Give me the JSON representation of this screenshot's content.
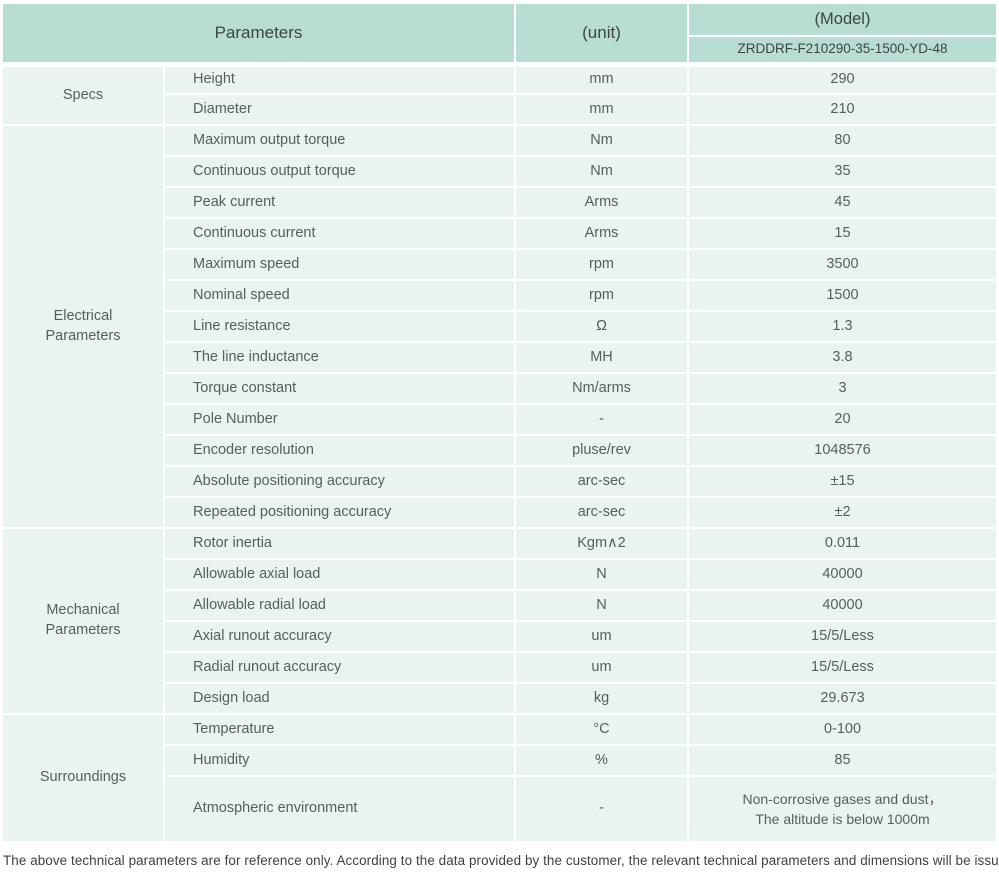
{
  "header": {
    "parameters_label": "Parameters",
    "unit_label": "(unit)",
    "model_label": "(Model)",
    "model_number": "ZRDDRF-F210290-35-1500-YD-48"
  },
  "colors": {
    "header_bg": "#b8ddd3",
    "row_bg": "#e9f4f1",
    "header_text": "#3d4543",
    "body_text": "#565d5a",
    "divider": "#ffffff"
  },
  "sections": [
    {
      "category": "Specs",
      "rows": [
        {
          "param": "Height",
          "unit": "mm",
          "value": "290"
        },
        {
          "param": "Diameter",
          "unit": "mm",
          "value": "210"
        }
      ]
    },
    {
      "category": "Electrical\nParameters",
      "rows": [
        {
          "param": "Maximum output torque",
          "unit": "Nm",
          "value": "80"
        },
        {
          "param": "Continuous output torque",
          "unit": "Nm",
          "value": "35"
        },
        {
          "param": "Peak current",
          "unit": "Arms",
          "value": "45"
        },
        {
          "param": "Continuous current",
          "unit": "Arms",
          "value": "15"
        },
        {
          "param": "Maximum speed",
          "unit": "rpm",
          "value": "3500"
        },
        {
          "param": "Nominal speed",
          "unit": "rpm",
          "value": "1500"
        },
        {
          "param": "Line resistance",
          "unit": "Ω",
          "value": "1.3"
        },
        {
          "param": "The line inductance",
          "unit": "MH",
          "value": "3.8"
        },
        {
          "param": "Torque constant",
          "unit": "Nm/arms",
          "value": "3"
        },
        {
          "param": "Pole Number",
          "unit": "-",
          "value": "20"
        },
        {
          "param": "Encoder resolution",
          "unit": "pluse/rev",
          "value": "1048576"
        },
        {
          "param": "Absolute positioning accuracy",
          "unit": "arc-sec",
          "value": "±15"
        },
        {
          "param": "Repeated positioning accuracy",
          "unit": "arc-sec",
          "value": "±2"
        }
      ]
    },
    {
      "category": "Mechanical\nParameters",
      "rows": [
        {
          "param": "Rotor inertia",
          "unit": "Kgm∧2",
          "value": "0.011"
        },
        {
          "param": "Allowable axial load",
          "unit": "N",
          "value": "40000"
        },
        {
          "param": "Allowable radial load",
          "unit": "N",
          "value": "40000"
        },
        {
          "param": "Axial runout accuracy",
          "unit": "um",
          "value": "15/5/Less"
        },
        {
          "param": "Radial runout accuracy",
          "unit": "um",
          "value": "15/5/Less"
        },
        {
          "param": "Design load",
          "unit": "kg",
          "value": "29.673"
        }
      ]
    },
    {
      "category": "Surroundings",
      "rows": [
        {
          "param": "Temperature",
          "unit": "°C",
          "value": "0-100"
        },
        {
          "param": "Humidity",
          "unit": "%",
          "value": "85"
        },
        {
          "param": "Atmospheric environment",
          "unit": "-",
          "value": "Non-corrosive gases and dust，\nThe altitude is below 1000m"
        }
      ]
    }
  ],
  "footer_note": "The above technical parameters are for reference only. According to the data provided by the customer, the relevant technical parameters and dimensions will be issued."
}
